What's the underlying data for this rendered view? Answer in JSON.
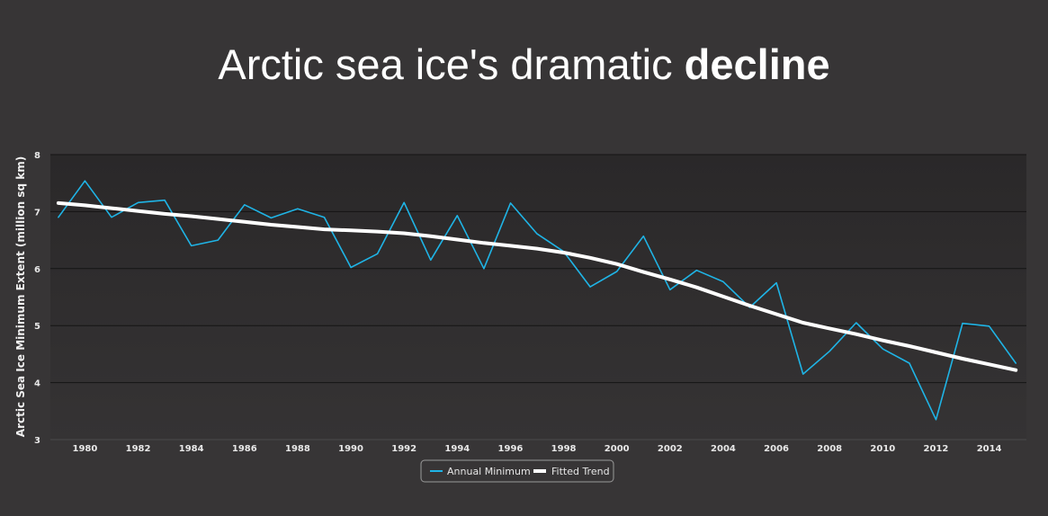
{
  "title": {
    "main": "Arctic sea ice's dramatic",
    "bold": "decline"
  },
  "chart_data": {
    "type": "line",
    "title": "Arctic sea ice's dramatic decline",
    "xlabel": "",
    "ylabel": "Arctic Sea Ice Minimum Extent (million sq km)",
    "xlim": [
      1978.7,
      2015.4
    ],
    "ylim": [
      3,
      8
    ],
    "yticks": [
      "3",
      "4",
      "5",
      "6",
      "7",
      "8"
    ],
    "xticks": [
      "1980",
      "1982",
      "1984",
      "1986",
      "1988",
      "1990",
      "1992",
      "1994",
      "1996",
      "1998",
      "2000",
      "2002",
      "2004",
      "2006",
      "2008",
      "2010",
      "2012",
      "2014"
    ],
    "grid": true,
    "legend_position": "bottom-center",
    "x": [
      1979,
      1980,
      1981,
      1982,
      1983,
      1984,
      1985,
      1986,
      1987,
      1988,
      1989,
      1990,
      1991,
      1992,
      1993,
      1994,
      1995,
      1996,
      1997,
      1998,
      1999,
      2000,
      2001,
      2002,
      2003,
      2004,
      2005,
      2006,
      2007,
      2008,
      2009,
      2010,
      2011,
      2012,
      2013,
      2014,
      2015
    ],
    "series": [
      {
        "name": "Annual Minimum",
        "color": "#1fb4e6",
        "values": [
          6.9,
          7.54,
          6.9,
          7.16,
          7.2,
          6.4,
          6.5,
          7.12,
          6.89,
          7.05,
          6.9,
          6.02,
          6.26,
          7.16,
          6.15,
          6.93,
          6.0,
          7.15,
          6.61,
          6.3,
          5.68,
          5.95,
          6.57,
          5.63,
          5.97,
          5.77,
          5.32,
          5.75,
          4.15,
          4.55,
          5.05,
          4.59,
          4.34,
          3.35,
          5.04,
          4.99,
          4.34
        ]
      },
      {
        "name": "Fitted Trend",
        "color": "#ffffff",
        "values": [
          7.15,
          7.11,
          7.06,
          7.01,
          6.96,
          6.92,
          6.87,
          6.82,
          6.77,
          6.73,
          6.69,
          6.67,
          6.65,
          6.62,
          6.57,
          6.51,
          6.45,
          6.4,
          6.35,
          6.28,
          6.19,
          6.08,
          5.94,
          5.81,
          5.67,
          5.51,
          5.35,
          5.2,
          5.05,
          4.95,
          4.85,
          4.74,
          4.64,
          4.53,
          4.42,
          4.32,
          4.22
        ]
      }
    ]
  }
}
